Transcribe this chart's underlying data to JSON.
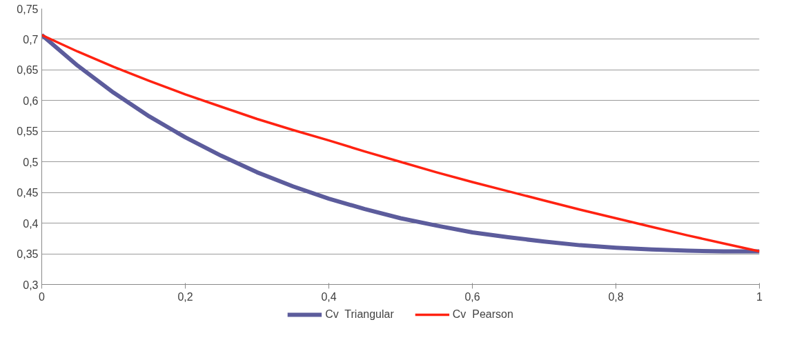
{
  "chart_data": {
    "type": "line",
    "x": [
      0,
      0.05,
      0.1,
      0.15,
      0.2,
      0.25,
      0.3,
      0.35,
      0.4,
      0.45,
      0.5,
      0.55,
      0.6,
      0.65,
      0.7,
      0.75,
      0.8,
      0.85,
      0.9,
      0.95,
      1
    ],
    "series": [
      {
        "name": "Cv  Triangular",
        "color": "#5c5c9c",
        "values": [
          0.707,
          0.657,
          0.613,
          0.574,
          0.54,
          0.51,
          0.483,
          0.46,
          0.44,
          0.423,
          0.408,
          0.396,
          0.385,
          0.377,
          0.37,
          0.364,
          0.36,
          0.357,
          0.355,
          0.354,
          0.354
        ]
      },
      {
        "name": "Cv  Pearson",
        "color": "#ff2211",
        "values": [
          0.707,
          0.68,
          0.655,
          0.632,
          0.61,
          0.59,
          0.57,
          0.552,
          0.535,
          0.517,
          0.5,
          0.483,
          0.467,
          0.452,
          0.437,
          0.422,
          0.408,
          0.394,
          0.38,
          0.367,
          0.354
        ]
      }
    ],
    "xlim": [
      0,
      1
    ],
    "xticks": [
      0,
      {
        "value": 0.2,
        "label": "0,2"
      },
      {
        "value": 0.4,
        "label": "0,4"
      },
      {
        "value": 0.6,
        "label": "0,6"
      },
      {
        "value": 0.8,
        "label": "0,8"
      },
      1
    ],
    "ylim": [
      0.3,
      0.75
    ],
    "yticks": [
      {
        "value": 0.3,
        "label": "0,3"
      },
      {
        "value": 0.35,
        "label": "0,35"
      },
      {
        "value": 0.4,
        "label": "0,4"
      },
      {
        "value": 0.45,
        "label": "0,45"
      },
      {
        "value": 0.5,
        "label": "0,5"
      },
      {
        "value": 0.55,
        "label": "0,55"
      },
      {
        "value": 0.6,
        "label": "0,6"
      },
      {
        "value": 0.65,
        "label": "0,65"
      },
      {
        "value": 0.7,
        "label": "0,7"
      },
      {
        "value": 0.75,
        "label": "0,75"
      }
    ],
    "grid": "y",
    "legend": "bottom",
    "marker": "none",
    "line_style": "solid"
  }
}
